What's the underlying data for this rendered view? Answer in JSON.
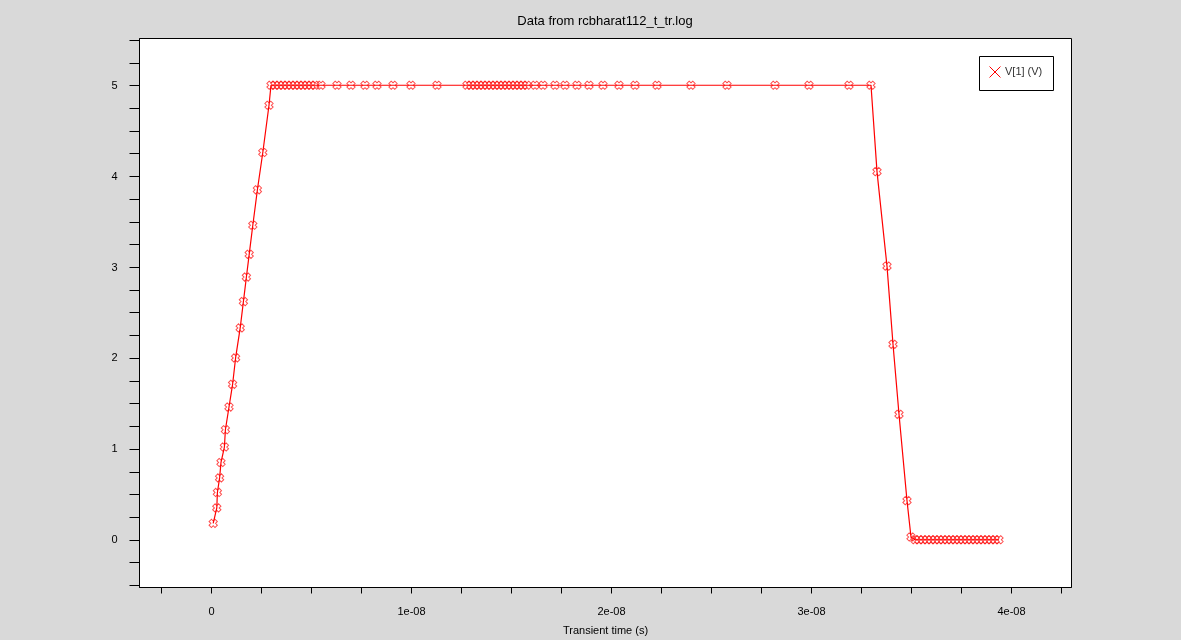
{
  "chart_data": {
    "type": "line",
    "title": "Data from rcbharat112_t_tr.log",
    "xlabel": "Transient time (s)",
    "x": [
      1.1e-10,
      2.9e-10,
      3.2e-10,
      4.3e-10,
      5e-10,
      6.7e-10,
      7.2e-10,
      9e-10,
      1.08e-09,
      1.23e-09,
      1.46e-09,
      1.62e-09,
      1.77e-09,
      1.91e-09,
      2.09e-09,
      2.32e-09,
      2.59e-09,
      2.9e-09,
      3e-09,
      3.2e-09,
      3.4e-09,
      3.6e-09,
      3.8e-09,
      4e-09,
      4.2e-09,
      4.4e-09,
      4.6e-09,
      4.8e-09,
      5e-09,
      5.2e-09,
      5.5e-09,
      6.3e-09,
      7e-09,
      7.7e-09,
      8.3e-09,
      9.1e-09,
      1e-08,
      1.13e-08,
      1.28e-08,
      1.3e-08,
      1.32e-08,
      1.34e-08,
      1.36e-08,
      1.38e-08,
      1.4e-08,
      1.42e-08,
      1.44e-08,
      1.46e-08,
      1.48e-08,
      1.5e-08,
      1.52e-08,
      1.54e-08,
      1.56e-08,
      1.58e-08,
      1.62e-08,
      1.66e-08,
      1.72e-08,
      1.77e-08,
      1.83e-08,
      1.89e-08,
      1.96e-08,
      2.04e-08,
      2.12e-08,
      2.23e-08,
      2.4e-08,
      2.58e-08,
      2.82e-08,
      2.99e-08,
      3.19e-08,
      3.3e-08,
      3.33e-08,
      3.38e-08,
      3.41e-08,
      3.44e-08,
      3.48e-08,
      3.5e-08,
      3.52e-08,
      3.54e-08,
      3.56e-08,
      3.58e-08,
      3.6e-08,
      3.62e-08,
      3.64e-08,
      3.66e-08,
      3.68e-08,
      3.7e-08,
      3.72e-08,
      3.74e-08,
      3.76e-08,
      3.78e-08,
      3.8e-08,
      3.82e-08,
      3.84e-08,
      3.86e-08,
      3.88e-08,
      3.9e-08,
      3.92e-08,
      3.94e-08
    ],
    "series": [
      {
        "name": "V[1] (V)",
        "color": "#ff0000",
        "values": [
          0.18,
          0.35,
          0.52,
          0.68,
          0.85,
          1.02,
          1.21,
          1.46,
          1.71,
          2.0,
          2.33,
          2.62,
          2.89,
          3.14,
          3.46,
          3.85,
          4.26,
          4.78,
          5.0,
          5.0,
          5.0,
          5.0,
          5.0,
          5.0,
          5.0,
          5.0,
          5.0,
          5.0,
          5.0,
          5.0,
          5.0,
          5.0,
          5.0,
          5.0,
          5.0,
          5.0,
          5.0,
          5.0,
          5.0,
          5.0,
          5.0,
          5.0,
          5.0,
          5.0,
          5.0,
          5.0,
          5.0,
          5.0,
          5.0,
          5.0,
          5.0,
          5.0,
          5.0,
          5.0,
          5.0,
          5.0,
          5.0,
          5.0,
          5.0,
          5.0,
          5.0,
          5.0,
          5.0,
          5.0,
          5.0,
          5.0,
          5.0,
          5.0,
          5.0,
          5.0,
          4.05,
          3.01,
          2.15,
          1.38,
          0.43,
          0.03,
          0.0,
          0.0,
          0.0,
          0.0,
          0.0,
          0.0,
          0.0,
          0.0,
          0.0,
          0.0,
          0.0,
          0.0,
          0.0,
          0.0,
          0.0,
          0.0,
          0.0,
          0.0,
          0.0,
          0.0,
          0.0,
          0.0
        ]
      }
    ],
    "xlim": [
      -3.6e-09,
      4.3e-08
    ],
    "ylim": [
      -0.52,
      5.52
    ],
    "xticks": [
      {
        "value": -2.5e-09,
        "label": null
      },
      0,
      {
        "value": 2.5e-09,
        "label": null
      },
      {
        "value": 5e-09,
        "label": null
      },
      {
        "value": 7.5e-09,
        "label": null
      },
      {
        "value": 1e-08,
        "label": "1e-08"
      },
      {
        "value": 1.25e-08,
        "label": null
      },
      {
        "value": 1.5e-08,
        "label": null
      },
      {
        "value": 1.75e-08,
        "label": null
      },
      {
        "value": 2e-08,
        "label": "2e-08"
      },
      {
        "value": 2.25e-08,
        "label": null
      },
      {
        "value": 2.5e-08,
        "label": null
      },
      {
        "value": 2.75e-08,
        "label": null
      },
      {
        "value": 3e-08,
        "label": "3e-08"
      },
      {
        "value": 3.25e-08,
        "label": null
      },
      {
        "value": 3.5e-08,
        "label": null
      },
      {
        "value": 3.75e-08,
        "label": null
      },
      {
        "value": 4e-08,
        "label": "4e-08"
      },
      {
        "value": 4.25e-08,
        "label": null
      }
    ],
    "yticks": [
      {
        "value": -0.5,
        "label": null
      },
      {
        "value": -0.25,
        "label": null
      },
      0,
      {
        "value": 0.25,
        "label": null
      },
      {
        "value": 0.5,
        "label": null
      },
      {
        "value": 0.75,
        "label": null
      },
      1,
      {
        "value": 1.25,
        "label": null
      },
      {
        "value": 1.5,
        "label": null
      },
      {
        "value": 1.75,
        "label": null
      },
      2,
      {
        "value": 2.25,
        "label": null
      },
      {
        "value": 2.5,
        "label": null
      },
      {
        "value": 2.75,
        "label": null
      },
      3,
      {
        "value": 3.25,
        "label": null
      },
      {
        "value": 3.5,
        "label": null
      },
      {
        "value": 3.75,
        "label": null
      },
      4,
      {
        "value": 4.25,
        "label": null
      },
      {
        "value": 4.5,
        "label": null
      },
      {
        "value": 4.75,
        "label": null
      },
      5,
      {
        "value": 5.25,
        "label": null
      },
      {
        "value": 5.5,
        "label": null
      }
    ],
    "grid": false,
    "legend": "top right",
    "marker": "cross",
    "line_style": "solid"
  }
}
